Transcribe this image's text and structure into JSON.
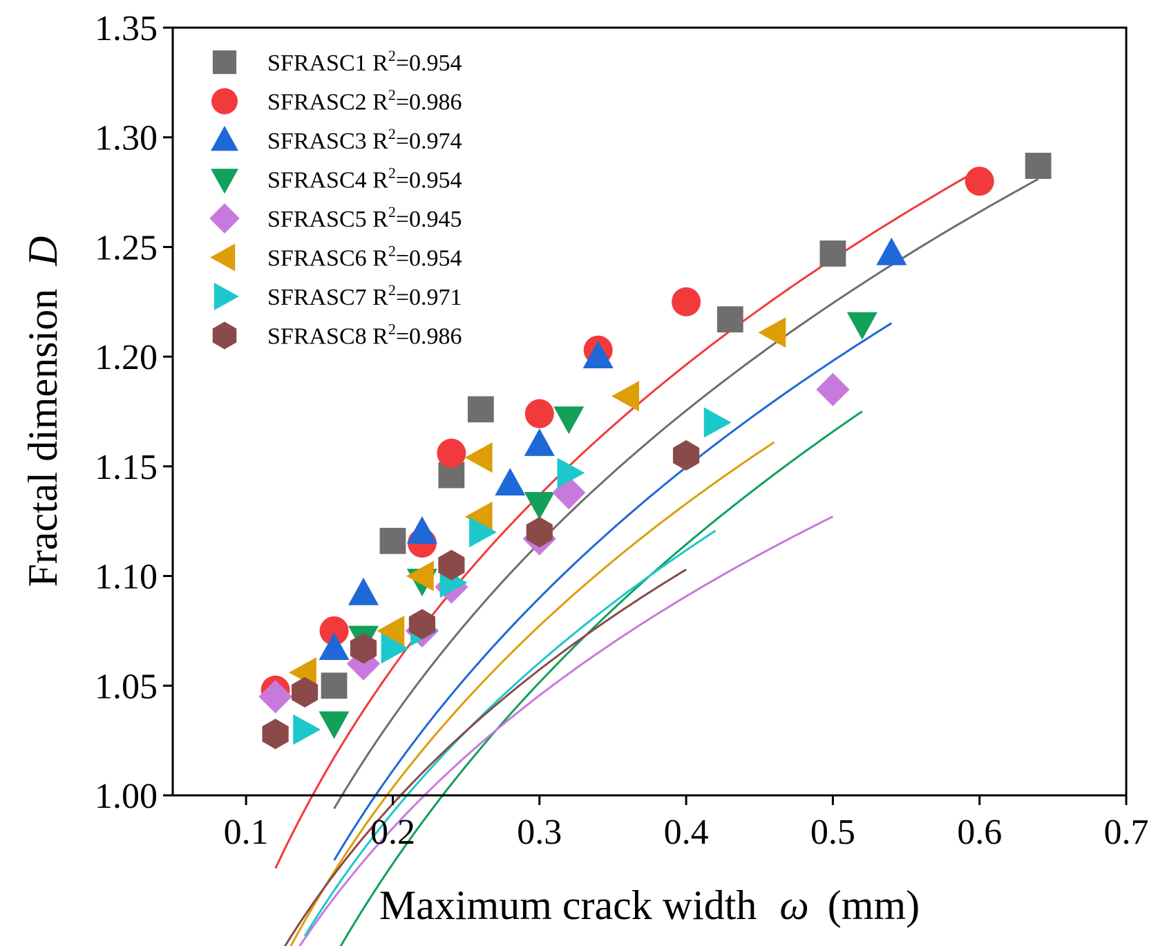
{
  "chart_data": {
    "type": "scatter",
    "xlabel_prefix": "Maximum crack width",
    "xlabel_symbol": "ω",
    "xlabel_unit": "(mm)",
    "ylabel_prefix": "Fractal dimension",
    "ylabel_symbol": "D",
    "xlim": [
      0.05,
      0.7
    ],
    "ylim": [
      1.0,
      1.35
    ],
    "x_ticks": [
      0.1,
      0.2,
      0.3,
      0.4,
      0.5,
      0.6,
      0.7
    ],
    "x_tick_labels": [
      "0.1",
      "0.2",
      "0.3",
      "0.4",
      "0.5",
      "0.6",
      "0.7"
    ],
    "y_ticks": [
      1.0,
      1.05,
      1.1,
      1.15,
      1.2,
      1.25,
      1.3,
      1.35
    ],
    "y_tick_labels": [
      "1.00",
      "1.05",
      "1.10",
      "1.15",
      "1.20",
      "1.25",
      "1.30",
      "1.35"
    ],
    "legend_position": "top-left",
    "series": [
      {
        "name": "SFRASC1",
        "r2_label": "R",
        "r2_sup": "2",
        "r2_value": "=0.954",
        "marker": "square",
        "color": "#6e6e6e",
        "x": [
          0.16,
          0.2,
          0.24,
          0.26,
          0.43,
          0.5,
          0.64
        ],
        "y": [
          1.05,
          1.116,
          1.146,
          1.176,
          1.217,
          1.247,
          1.287
        ],
        "fit": {
          "a": 1.39,
          "b": 0.183,
          "x_range": [
            0.16,
            0.64
          ]
        }
      },
      {
        "name": "SFRASC2",
        "r2_label": "R",
        "r2_sup": "2",
        "r2_value": "=0.986",
        "marker": "circle",
        "color": "#f23a3c",
        "x": [
          0.12,
          0.16,
          0.22,
          0.24,
          0.3,
          0.34,
          0.4,
          0.6
        ],
        "y": [
          1.048,
          1.075,
          1.115,
          1.156,
          1.174,
          1.203,
          1.225,
          1.28
        ],
        "fit": {
          "a": 1.407,
          "b": 0.177,
          "x_range": [
            0.12,
            0.6
          ]
        }
      },
      {
        "name": "SFRASC3",
        "r2_label": "R",
        "r2_sup": "2",
        "r2_value": "=0.974",
        "marker": "triangle-up",
        "color": "#1f68d8",
        "x": [
          0.16,
          0.18,
          0.22,
          0.28,
          0.3,
          0.34,
          0.54
        ],
        "y": [
          1.067,
          1.092,
          1.12,
          1.142,
          1.16,
          1.2,
          1.247
        ],
        "fit": {
          "a": 1.362,
          "b": 0.185,
          "x_range": [
            0.16,
            0.54
          ]
        }
      },
      {
        "name": "SFRASC4",
        "r2_label": "R",
        "r2_sup": "2",
        "r2_value": "=0.954",
        "marker": "triangle-down",
        "color": "#12a05a",
        "x": [
          0.16,
          0.18,
          0.22,
          0.3,
          0.32,
          0.52
        ],
        "y": [
          1.033,
          1.072,
          1.098,
          1.133,
          1.172,
          1.215
        ],
        "fit": {
          "a": 1.341,
          "b": 0.202,
          "x_range": [
            0.16,
            0.52
          ]
        }
      },
      {
        "name": "SFRASC5",
        "r2_label": "R",
        "r2_sup": "2",
        "r2_value": "=0.945",
        "marker": "diamond",
        "color": "#c77adc",
        "x": [
          0.12,
          0.18,
          0.22,
          0.24,
          0.3,
          0.32,
          0.5
        ],
        "y": [
          1.045,
          1.06,
          1.075,
          1.095,
          1.117,
          1.138,
          1.185
        ],
        "fit": {
          "a": 1.248,
          "b": 0.147,
          "x_range": [
            0.12,
            0.5
          ]
        }
      },
      {
        "name": "SFRASC6",
        "r2_label": "R",
        "r2_sup": "2",
        "r2_value": "=0.954",
        "marker": "triangle-left",
        "color": "#dd9e08",
        "x": [
          0.14,
          0.2,
          0.22,
          0.26,
          0.26,
          0.36,
          0.46
        ],
        "y": [
          1.056,
          1.075,
          1.1,
          1.127,
          1.154,
          1.182,
          1.211
        ],
        "fit": {
          "a": 1.33,
          "b": 0.175,
          "x_range": [
            0.13,
            0.46
          ]
        }
      },
      {
        "name": "SFRASC7",
        "r2_label": "R",
        "r2_sup": "2",
        "r2_value": "=0.971",
        "marker": "triangle-right",
        "color": "#1cc8cc",
        "x": [
          0.14,
          0.2,
          0.22,
          0.24,
          0.26,
          0.32,
          0.42
        ],
        "y": [
          1.03,
          1.067,
          1.075,
          1.097,
          1.12,
          1.147,
          1.17
        ],
        "fit": {
          "a": 1.292,
          "b": 0.164,
          "x_range": [
            0.14,
            0.42
          ]
        }
      },
      {
        "name": "SFRASC8",
        "r2_label": "R",
        "r2_sup": "2",
        "r2_value": "=0.986",
        "marker": "hexagon",
        "color": "#8b4a4a",
        "x": [
          0.12,
          0.14,
          0.18,
          0.22,
          0.24,
          0.3,
          0.4
        ],
        "y": [
          1.028,
          1.047,
          1.067,
          1.078,
          1.105,
          1.12,
          1.155
        ],
        "fit": {
          "a": 1.262,
          "b": 0.147,
          "x_range": [
            0.12,
            0.4
          ]
        }
      }
    ]
  }
}
